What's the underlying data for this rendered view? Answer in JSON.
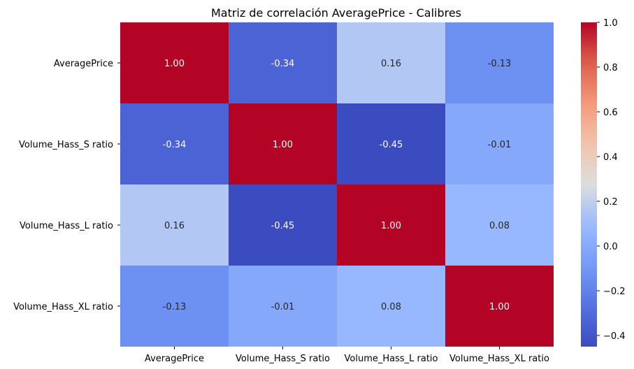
{
  "chart_data": {
    "type": "heatmap",
    "title": "Matriz de correlación AveragePrice - Calibres",
    "xlabel": "",
    "ylabel": "",
    "row_labels": [
      "AveragePrice",
      "Volume_Hass_S ratio",
      "Volume_Hass_L ratio",
      "Volume_Hass_XL ratio"
    ],
    "col_labels": [
      "AveragePrice",
      "Volume_Hass_S ratio",
      "Volume_Hass_L ratio",
      "Volume_Hass_XL ratio"
    ],
    "values": [
      [
        1.0,
        -0.34,
        0.16,
        -0.13
      ],
      [
        -0.34,
        1.0,
        -0.45,
        -0.01
      ],
      [
        0.16,
        -0.45,
        1.0,
        0.08
      ],
      [
        -0.13,
        -0.01,
        0.08,
        1.0
      ]
    ],
    "annotations_format": "0.00",
    "colormap": "coolwarm",
    "colorbar": {
      "range": [
        -0.45,
        1.0
      ],
      "ticks": [
        -0.4,
        -0.2,
        0.0,
        0.2,
        0.4,
        0.6,
        0.8,
        1.0
      ],
      "tick_labels": [
        "−0.4",
        "−0.2",
        "0.0",
        "0.2",
        "0.4",
        "0.6",
        "0.8",
        "1.0"
      ],
      "position": "right"
    },
    "grid": false
  }
}
